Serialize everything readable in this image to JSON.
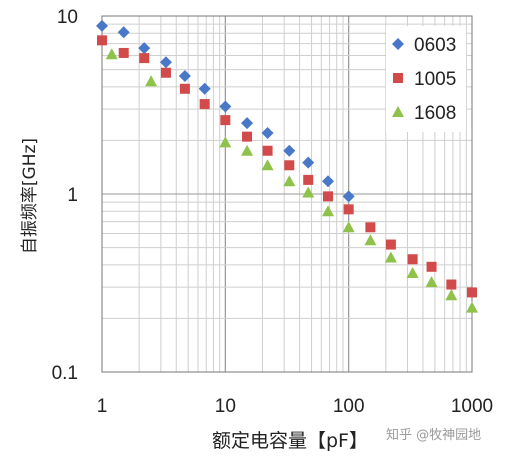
{
  "chart_data": {
    "type": "scatter",
    "title": "",
    "xlabel": "额定电容量【pF】",
    "ylabel": "自振频率[GHz]",
    "xscale": "log",
    "yscale": "log",
    "xlim": [
      1,
      1000
    ],
    "ylim": [
      0.1,
      10
    ],
    "x_ticks": [
      "1",
      "10",
      "100",
      "1000"
    ],
    "y_ticks": [
      "10",
      "1",
      "0.1"
    ],
    "grid": true,
    "legend_position": "top-right",
    "series": [
      {
        "name": "0603",
        "marker": "diamond",
        "color": "#4a78c8",
        "points": [
          [
            1,
            8.8
          ],
          [
            1.5,
            8.1
          ],
          [
            2.2,
            6.6
          ],
          [
            3.3,
            5.5
          ],
          [
            4.7,
            4.6
          ],
          [
            6.8,
            3.9
          ],
          [
            10,
            3.1
          ],
          [
            15,
            2.5
          ],
          [
            22,
            2.2
          ],
          [
            33,
            1.75
          ],
          [
            47,
            1.5
          ],
          [
            68,
            1.18
          ],
          [
            100,
            0.97
          ]
        ]
      },
      {
        "name": "1005",
        "marker": "square",
        "color": "#d24a4a",
        "points": [
          [
            1,
            7.3
          ],
          [
            1.5,
            6.2
          ],
          [
            2.2,
            5.8
          ],
          [
            3.3,
            4.8
          ],
          [
            4.7,
            3.9
          ],
          [
            6.8,
            3.2
          ],
          [
            10,
            2.6
          ],
          [
            15,
            2.1
          ],
          [
            22,
            1.75
          ],
          [
            33,
            1.45
          ],
          [
            47,
            1.2
          ],
          [
            68,
            0.97
          ],
          [
            100,
            0.82
          ],
          [
            150,
            0.65
          ],
          [
            220,
            0.52
          ],
          [
            330,
            0.43
          ],
          [
            470,
            0.39
          ],
          [
            680,
            0.31
          ],
          [
            1000,
            0.28
          ]
        ]
      },
      {
        "name": "1608",
        "marker": "triangle",
        "color": "#8ec24a",
        "points": [
          [
            1.2,
            6.1
          ],
          [
            2.5,
            4.3
          ],
          [
            10,
            1.95
          ],
          [
            15,
            1.75
          ],
          [
            22,
            1.45
          ],
          [
            33,
            1.18
          ],
          [
            47,
            1.02
          ],
          [
            68,
            0.8
          ],
          [
            100,
            0.65
          ],
          [
            150,
            0.55
          ],
          [
            220,
            0.44
          ],
          [
            330,
            0.36
          ],
          [
            470,
            0.32
          ],
          [
            680,
            0.27
          ],
          [
            1000,
            0.23
          ]
        ]
      }
    ]
  },
  "watermark": "知乎 @牧神园地"
}
